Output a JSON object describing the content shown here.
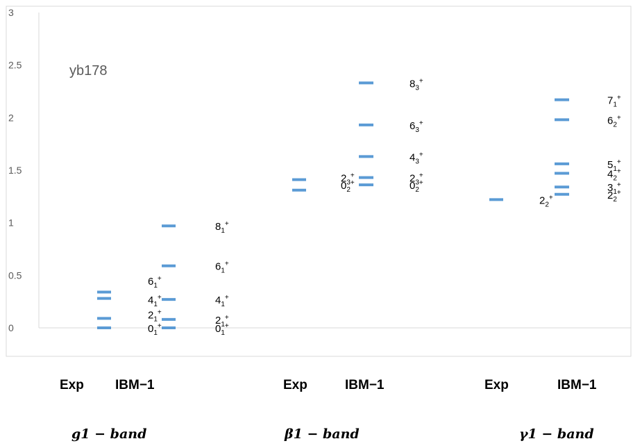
{
  "chart_data": {
    "type": "scatter",
    "title": "yb178",
    "ylim": [
      0,
      3
    ],
    "yticks": [
      "0",
      "0.5",
      "1",
      "1.5",
      "2",
      "2.5",
      "3"
    ],
    "grid": false,
    "series_color": "#5b9bd5",
    "series": [
      {
        "group": "g1",
        "kind": "Exp",
        "levels": [
          {
            "y": 0.0
          },
          {
            "y": 0.09
          },
          {
            "y": 0.28
          },
          {
            "y": 0.34
          }
        ]
      },
      {
        "group": "g1",
        "kind": "IBM-1",
        "levels": [
          {
            "y": 0.0,
            "label": "0",
            "sub": "1"
          },
          {
            "y": 0.08,
            "label": "2",
            "sub": "1"
          },
          {
            "y": 0.27,
            "label": "4",
            "sub": "1"
          },
          {
            "y": 0.59,
            "label": "6",
            "sub": "1"
          },
          {
            "y": 0.97,
            "label": "8",
            "sub": "1"
          }
        ]
      },
      {
        "group": "beta1",
        "kind": "Exp",
        "levels": [
          {
            "y": 1.31
          },
          {
            "y": 1.41
          }
        ]
      },
      {
        "group": "beta1",
        "kind": "IBM-1",
        "levels": [
          {
            "y": 1.36,
            "label": "0",
            "sub": "2"
          },
          {
            "y": 1.43,
            "label": "2",
            "sub": "3"
          },
          {
            "y": 1.63,
            "label": "4",
            "sub": "3"
          },
          {
            "y": 1.93,
            "label": "6",
            "sub": "3"
          },
          {
            "y": 2.33,
            "label": "8",
            "sub": "3"
          }
        ]
      },
      {
        "group": "gamma1",
        "kind": "Exp",
        "levels": [
          {
            "y": 1.22
          }
        ]
      },
      {
        "group": "gamma1",
        "kind": "IBM-1",
        "levels": [
          {
            "y": 1.27,
            "label": "2",
            "sub": "2"
          },
          {
            "y": 1.34,
            "label": "3",
            "sub": "1"
          },
          {
            "y": 1.47,
            "label": "4",
            "sub": "2"
          },
          {
            "y": 1.56,
            "label": "5",
            "sub": "1"
          },
          {
            "y": 1.98,
            "label": "6",
            "sub": "2"
          },
          {
            "y": 2.17,
            "label": "7",
            "sub": "1"
          }
        ]
      }
    ],
    "inner_labels": [
      {
        "near_y": 0.0,
        "label": "0",
        "sub": "1",
        "group": "g1"
      },
      {
        "near_y": 0.13,
        "label": "2",
        "sub": "1",
        "group": "g1"
      },
      {
        "near_y": 0.27,
        "label": "4",
        "sub": "1",
        "group": "g1"
      },
      {
        "near_y": 0.45,
        "label": "6",
        "sub": "1",
        "group": "g1"
      },
      {
        "near_y": 1.36,
        "label": "0",
        "sub": "2",
        "group": "beta1"
      },
      {
        "near_y": 1.43,
        "label": "2",
        "sub": "3",
        "group": "beta1"
      },
      {
        "near_y": 1.22,
        "label": "2",
        "sub": "2",
        "group": "gamma1"
      }
    ],
    "sup": "+"
  },
  "groups": [
    {
      "exp_label": "Exp",
      "ibm_label": "IBM−1",
      "band_label": "g1 − band"
    },
    {
      "exp_label": "Exp",
      "ibm_label": "IBM−1",
      "band_label": "β1 − band"
    },
    {
      "exp_label": "Exp",
      "ibm_label": "IBM−1",
      "band_label": "γ1 − band"
    }
  ]
}
